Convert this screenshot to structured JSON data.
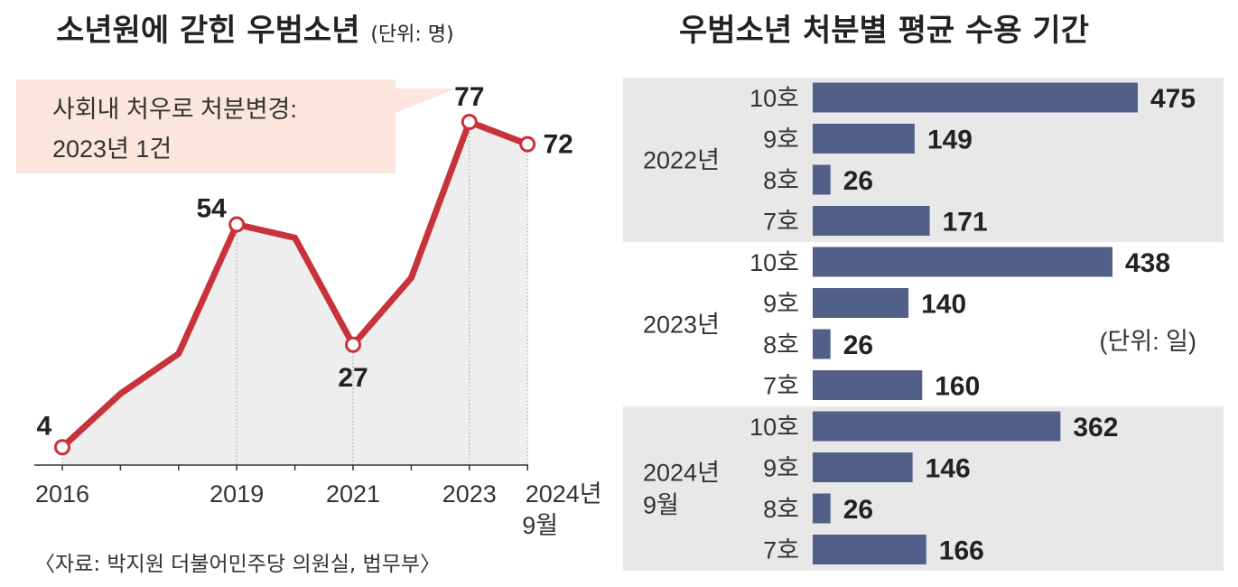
{
  "left": {
    "title": "소년원에 갇힌 우범소년",
    "unit": "(단위: 명)",
    "callout": [
      "사회내 처우로 처분변경:",
      "2023년 1건"
    ],
    "source": "〈자료: 박지원 더불어민주당 의원실, 법무부〉"
  },
  "right": {
    "title": "우범소년 처분별 평균 수용 기간",
    "unit": "(단위: 일)"
  },
  "chart_data": [
    {
      "type": "line",
      "x": [
        "2016",
        "2017",
        "2018",
        "2019",
        "2020",
        "2021",
        "2022",
        "2023",
        "2024년 9월"
      ],
      "values": [
        4,
        16,
        25,
        54,
        51,
        27,
        42,
        77,
        72
      ],
      "x_tick_labels": [
        "2016",
        "",
        "",
        "2019",
        "",
        "2021",
        "",
        "2023",
        "2024년 9월"
      ],
      "labeled_points": [
        0,
        3,
        5,
        7,
        8
      ],
      "ylim": [
        0,
        80
      ],
      "color": "#c8323a"
    },
    {
      "type": "bar",
      "orientation": "horizontal",
      "groups": [
        {
          "label": "2022년",
          "items": [
            {
              "label": "10호",
              "value": 475
            },
            {
              "label": "9호",
              "value": 149
            },
            {
              "label": "8호",
              "value": 26
            },
            {
              "label": "7호",
              "value": 171
            }
          ]
        },
        {
          "label": "2023년",
          "items": [
            {
              "label": "10호",
              "value": 438
            },
            {
              "label": "9호",
              "value": 140
            },
            {
              "label": "8호",
              "value": 26
            },
            {
              "label": "7호",
              "value": 160
            }
          ]
        },
        {
          "label": "2024년 9월",
          "items": [
            {
              "label": "10호",
              "value": 362
            },
            {
              "label": "9호",
              "value": 146
            },
            {
              "label": "8호",
              "value": 26
            },
            {
              "label": "7호",
              "value": 166
            }
          ]
        }
      ],
      "color": "#526089"
    }
  ]
}
